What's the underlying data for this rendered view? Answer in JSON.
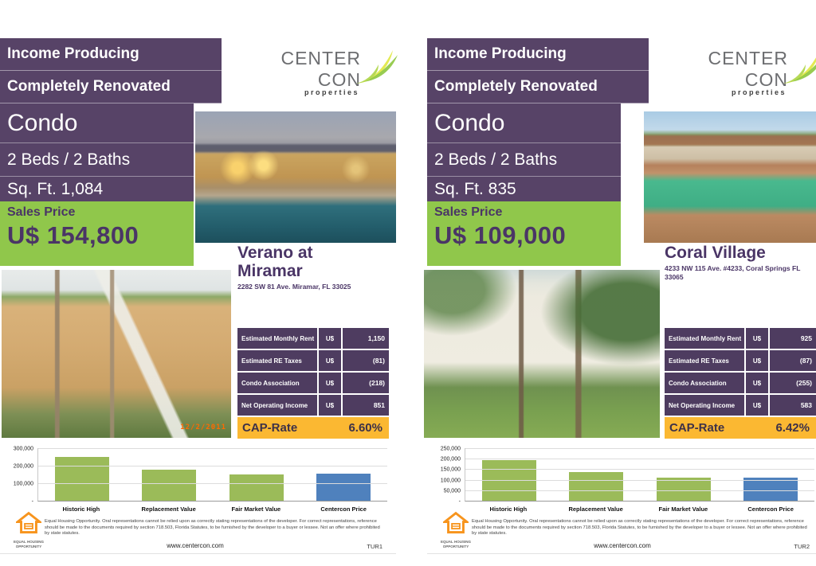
{
  "colors": {
    "purple": "#574367",
    "purple_dark": "#4e3c60",
    "green": "#90c74b",
    "text_purple": "#4a3566",
    "cap_yellow": "#fbb832",
    "bar_green": "#9bbb59",
    "bar_blue": "#4f81bd",
    "logo_orange": "#f7941d",
    "logo_gray": "#6d6e71"
  },
  "flyers": [
    {
      "header": {
        "line1": "Income Producing",
        "line2": "Completely Renovated",
        "type": "Condo",
        "beds_baths": "2 Beds / 2 Baths",
        "sqft": "Sq. Ft. 1,084",
        "sales_price_label": "Sales Price",
        "sales_price": "U$ 154,800"
      },
      "logo": {
        "name": "CENTER CON",
        "sub": "properties"
      },
      "property": {
        "name": "Verano at Miramar",
        "address": "2282 SW 81 Ave. Miramar, FL 33025"
      },
      "photos": {
        "top": "pool and clubhouse at dusk",
        "bottom": "two-story apartment building with exterior stairs",
        "date_stamp": "12/2/2011"
      },
      "financials": {
        "rows": [
          {
            "label": "Estimated Monthly Rent",
            "currency": "U$",
            "value": "1,150"
          },
          {
            "label": "Estimated RE Taxes",
            "currency": "U$",
            "value": "(81)"
          },
          {
            "label": "Condo Association",
            "currency": "U$",
            "value": "(218)"
          },
          {
            "label": "Net Operating Income",
            "currency": "U$",
            "value": "851"
          }
        ],
        "cap_label": "CAP-Rate",
        "cap_value": "6.60%"
      },
      "chart_data": {
        "type": "bar",
        "title": "",
        "xlabel": "",
        "ylabel": "",
        "categories": [
          "Historic High",
          "Replacement Value",
          "Fair Market Value",
          "Centercon Price"
        ],
        "values": [
          250000,
          178000,
          152000,
          154800
        ],
        "bar_colors": [
          "#9bbb59",
          "#9bbb59",
          "#9bbb59",
          "#4f81bd"
        ],
        "ylim": [
          0,
          300000
        ],
        "grid": true,
        "legend": false,
        "yticks": [
          {
            "v": 300000,
            "l": "300,000"
          },
          {
            "v": 200000,
            "l": "200,000"
          },
          {
            "v": 100000,
            "l": "100,000"
          },
          {
            "v": 0,
            "l": "-"
          }
        ]
      },
      "footer": {
        "equal_housing": "EQUAL HOUSING OPPORTUNITY",
        "disclaimer": "Equal Housing Opportunity. Oral representations cannot be relied upon as correctly stating representations of the developer.  For correct representations, reference should be made to the documents required by section 718.503, Florida Statutes, to be furnished by the developer to a buyer or lessee. Not an offer where prohibited by state statutes.",
        "website": "www.centercon.com",
        "code": "TUR1"
      }
    },
    {
      "header": {
        "line1": "Income Producing",
        "line2": "Completely Renovated",
        "type": "Condo",
        "beds_baths": "2 Beds / 2 Baths",
        "sqft": "Sq. Ft. 835",
        "sales_price_label": "Sales Price",
        "sales_price": "U$ 109,000"
      },
      "logo": {
        "name": "CENTER CON",
        "sub": "properties"
      },
      "property": {
        "name": "Coral Village",
        "address": "4233 NW 115 Ave. #4233, Coral Springs FL 33065"
      },
      "photos": {
        "top": "community pool with green water",
        "bottom": "white two-story townhouse with palm trees",
        "date_stamp": ""
      },
      "financials": {
        "rows": [
          {
            "label": "Estimated Monthly Rent",
            "currency": "U$",
            "value": "925"
          },
          {
            "label": "Estimated RE Taxes",
            "currency": "U$",
            "value": "(87)"
          },
          {
            "label": "Condo Association",
            "currency": "U$",
            "value": "(255)"
          },
          {
            "label": "Net Operating Income",
            "currency": "U$",
            "value": "583"
          }
        ],
        "cap_label": "CAP-Rate",
        "cap_value": "6.42%"
      },
      "chart_data": {
        "type": "bar",
        "title": "",
        "xlabel": "",
        "ylabel": "",
        "categories": [
          "Historic High",
          "Replacement Value",
          "Fair Market Value",
          "Centercon Price"
        ],
        "values": [
          195000,
          137000,
          110000,
          109000
        ],
        "bar_colors": [
          "#9bbb59",
          "#9bbb59",
          "#9bbb59",
          "#4f81bd"
        ],
        "ylim": [
          0,
          250000
        ],
        "grid": true,
        "legend": false,
        "yticks": [
          {
            "v": 250000,
            "l": "250,000"
          },
          {
            "v": 200000,
            "l": "200,000"
          },
          {
            "v": 150000,
            "l": "150,000"
          },
          {
            "v": 100000,
            "l": "100,000"
          },
          {
            "v": 50000,
            "l": "50,000"
          },
          {
            "v": 0,
            "l": "-"
          }
        ]
      },
      "footer": {
        "equal_housing": "EQUAL HOUSING OPPORTUNITY",
        "disclaimer": "Equal Housing Opportunity. Oral representations cannot be relied upon as correctly stating representations of the developer.  For correct representations, reference should be made to the documents required by section 718.503, Florida Statutes, to be furnished by the developer to a buyer or lessee. Not an offer where prohibited by state statutes.",
        "website": "www.centercon.com",
        "code": "TUR2"
      }
    }
  ]
}
